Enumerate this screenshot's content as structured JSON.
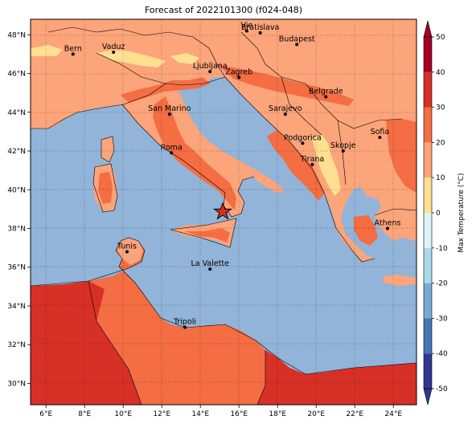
{
  "title": "Forecast of 2022101300 (f024-048)",
  "map": {
    "lon_range": [
      5.2,
      25.2
    ],
    "lat_range": [
      28.9,
      48.8
    ],
    "lon_ticks": [
      "6°E",
      "8°E",
      "10°E",
      "12°E",
      "14°E",
      "16°E",
      "18°E",
      "20°E",
      "22°E",
      "24°E"
    ],
    "lat_ticks": [
      "30°N",
      "32°N",
      "34°N",
      "36°N",
      "38°N",
      "40°N",
      "42°N",
      "44°N",
      "46°N",
      "48°N"
    ],
    "grid": true,
    "sea_color": "#91b4d8",
    "land_color": "#fca47a",
    "marker": {
      "type": "star",
      "lon": 15.2,
      "lat": 38.8,
      "color": "#d7301f"
    },
    "cities": [
      {
        "name": "Vienna",
        "label": "Vie",
        "lon": 16.4,
        "lat": 48.2
      },
      {
        "name": "Bratislava",
        "label": "Bratislava",
        "lon": 17.1,
        "lat": 48.1
      },
      {
        "name": "Budapest",
        "label": "Budapest",
        "lon": 19.0,
        "lat": 47.5
      },
      {
        "name": "Vaduz",
        "label": "Vaduz",
        "lon": 9.5,
        "lat": 47.1
      },
      {
        "name": "Bern",
        "label": "Bern",
        "lon": 7.4,
        "lat": 47.0
      },
      {
        "name": "Ljubljana",
        "label": "Ljubljana",
        "lon": 14.5,
        "lat": 46.1
      },
      {
        "name": "Zagreb",
        "label": "Zagreb",
        "lon": 16.0,
        "lat": 45.8
      },
      {
        "name": "Belgrade",
        "label": "Belgrade",
        "lon": 20.5,
        "lat": 44.8
      },
      {
        "name": "San Marino",
        "label": "San Marino",
        "lon": 12.4,
        "lat": 43.9
      },
      {
        "name": "Sarajevo",
        "label": "Sarajevo",
        "lon": 18.4,
        "lat": 43.9
      },
      {
        "name": "Sofia",
        "label": "Sofia",
        "lon": 23.3,
        "lat": 42.7
      },
      {
        "name": "Podgorica",
        "label": "Podgorica",
        "lon": 19.3,
        "lat": 42.4
      },
      {
        "name": "Skopje",
        "label": "Skopje",
        "lon": 21.4,
        "lat": 42.0
      },
      {
        "name": "Roma",
        "label": "Roma",
        "lon": 12.5,
        "lat": 41.9
      },
      {
        "name": "Tirana",
        "label": "Tirana",
        "lon": 19.8,
        "lat": 41.3
      },
      {
        "name": "Athens",
        "label": "Athens",
        "lon": 23.7,
        "lat": 38.0
      },
      {
        "name": "Tunis",
        "label": "Tunis",
        "lon": 10.2,
        "lat": 36.8
      },
      {
        "name": "La Valette",
        "label": "La Valette",
        "lon": 14.5,
        "lat": 35.9
      },
      {
        "name": "Tripoli",
        "label": "Tripoli",
        "lon": 13.2,
        "lat": 32.9
      }
    ]
  },
  "colorbar": {
    "label": "Max Temperature (°C)",
    "ticks": [
      "-50",
      "-40",
      "-30",
      "-20",
      "-10",
      "0",
      "10",
      "20",
      "30",
      "40",
      "50"
    ],
    "colors": [
      "#313695",
      "#4575b4",
      "#74add1",
      "#abd9e9",
      "#e0f3f8",
      "#ffffbf",
      "#fee090",
      "#fca47a",
      "#f46d43",
      "#d73027",
      "#a50026"
    ],
    "extend": "both"
  }
}
